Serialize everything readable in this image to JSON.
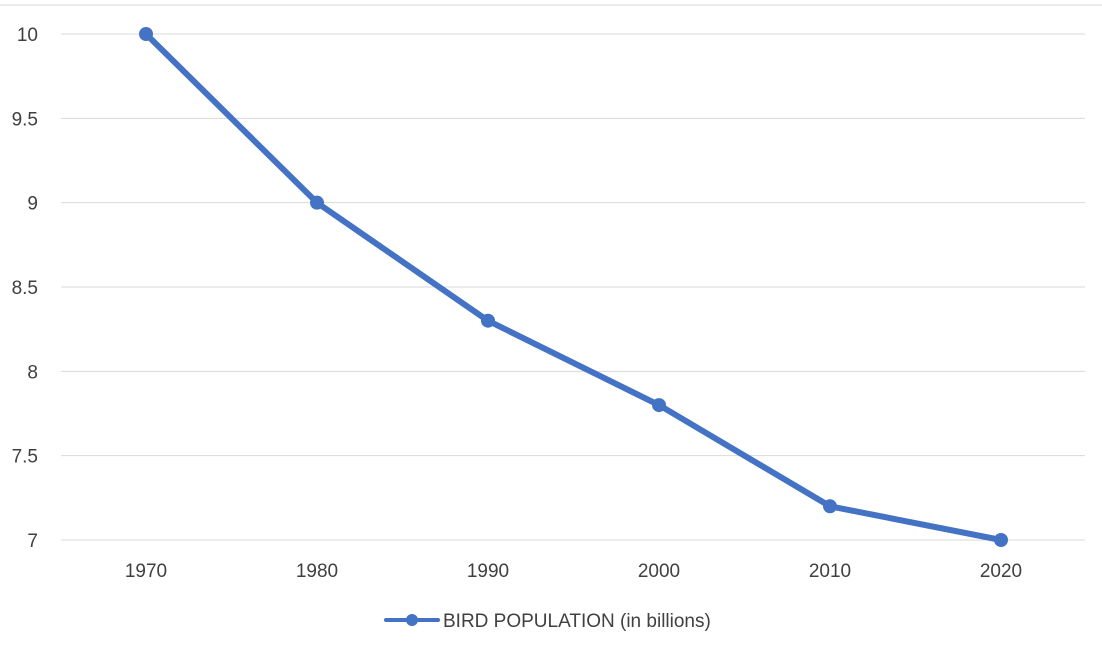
{
  "chart_data": {
    "type": "line",
    "title": "",
    "xlabel": "",
    "ylabel": "",
    "categories": [
      "1970",
      "1980",
      "1990",
      "2000",
      "2010",
      "2020"
    ],
    "series": [
      {
        "name": "BIRD POPULATION (in billions)",
        "values": [
          10,
          9,
          8.3,
          7.8,
          7.2,
          7
        ],
        "color": "#4472C4"
      }
    ],
    "ylim": [
      7,
      10
    ],
    "yticks": [
      "7",
      "7.5",
      "8",
      "8.5",
      "9",
      "9.5",
      "10"
    ],
    "grid": true,
    "legend_position": "bottom",
    "colors": {
      "series": "#4472C4",
      "grid": "#D9D9D9",
      "text": "#404040"
    }
  }
}
